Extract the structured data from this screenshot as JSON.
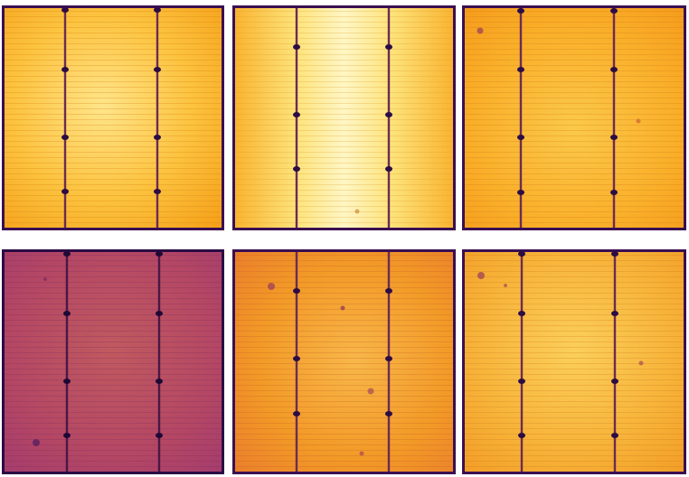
{
  "panels": [
    {
      "id": "cell-1",
      "edge": "#3a0f52",
      "colors": {
        "a": "#f5a21a",
        "b": "#fcc33f",
        "c": "#ffe58a"
      },
      "busbar_dots": 4,
      "defects": []
    },
    {
      "id": "cell-2",
      "edge": "#3a0f52",
      "colors": {
        "a": "#f9b431",
        "b": "#fde37a",
        "c": "#fff6c4"
      },
      "busbar_dots": 4,
      "defects": []
    },
    {
      "id": "cell-3",
      "edge": "#3a0f52",
      "colors": {
        "a": "#f3981a",
        "b": "#f9ae28",
        "c": "#fbc94a"
      },
      "busbar_dots": 4,
      "defects": [
        "spot"
      ]
    },
    {
      "id": "cell-4",
      "edge": "#2b0c45",
      "colors": {
        "a": "#a23a6e",
        "b": "#b44764",
        "c": "#c05a5f"
      },
      "busbar_dots": 4,
      "defects": [
        "spot"
      ]
    },
    {
      "id": "cell-5",
      "edge": "#3a0f52",
      "colors": {
        "a": "#e97a2c",
        "b": "#f29a27",
        "c": "#f8b74a"
      },
      "busbar_dots": 4,
      "defects": [
        "spot"
      ]
    },
    {
      "id": "cell-6",
      "edge": "#3a0f52",
      "colors": {
        "a": "#f19a23",
        "b": "#f7b43a",
        "c": "#fbcf5a"
      },
      "busbar_dots": 4,
      "defects": [
        "spot"
      ]
    }
  ]
}
